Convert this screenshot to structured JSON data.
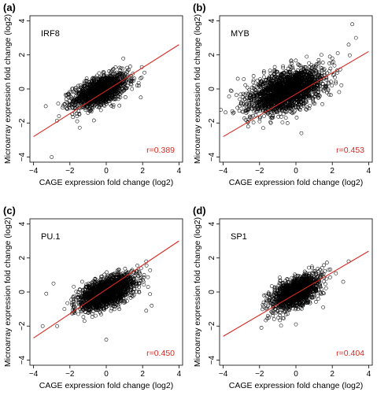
{
  "chart_data": [
    {
      "type": "scatter",
      "panel": "(a)",
      "title": "IRF8",
      "xlabel": "CAGE expression fold change (log2)",
      "ylabel": "Microarray expression fold change (log2)",
      "xlim": [
        -4.2,
        4.2
      ],
      "ylim": [
        -4.3,
        4.3
      ],
      "xticks": [
        -4,
        -2,
        0,
        2,
        4
      ],
      "yticks": [
        -4,
        -2,
        0,
        2,
        4
      ],
      "grid": false,
      "correlation_label": "r=0.389",
      "regression_line": {
        "x": [
          -4,
          4
        ],
        "y": [
          -2.8,
          2.6
        ]
      },
      "cloud": {
        "center": [
          -0.3,
          -0.1
        ],
        "sd": [
          0.75,
          0.5
        ],
        "rho": 0.55,
        "n": 1400
      },
      "outliers": {
        "x": [
          -3.0,
          -2.6,
          -2.2,
          1.7,
          1.9,
          -1.6,
          0.9,
          -2.4
        ],
        "y": [
          -4.0,
          -1.6,
          -0.6,
          0.2,
          -0.5,
          -1.9,
          1.2,
          -1.1
        ]
      },
      "colors": {
        "points": "#000000",
        "line": "#d62a20",
        "label": "#d62a20"
      }
    },
    {
      "type": "scatter",
      "panel": "(b)",
      "title": "MYB",
      "xlabel": "CAGE expression fold change (log2)",
      "ylabel": "Microarray expression fold change (log2)",
      "xlim": [
        -4.2,
        4.2
      ],
      "ylim": [
        -4.3,
        4.3
      ],
      "xticks": [
        -4,
        -2,
        0,
        2,
        4
      ],
      "yticks": [
        -4,
        -2,
        0,
        2,
        4
      ],
      "grid": false,
      "correlation_label": "r=0.453",
      "regression_line": {
        "x": [
          -4,
          4
        ],
        "y": [
          -2.8,
          2.2
        ]
      },
      "cloud": {
        "center": [
          -0.5,
          -0.1
        ],
        "sd": [
          1.0,
          0.65
        ],
        "rho": 0.5,
        "n": 2200
      },
      "outliers": {
        "x": [
          3.1,
          3.3,
          2.9,
          2.3,
          1.9,
          -3.2,
          -3.0,
          -2.6,
          1.4,
          2.0,
          -1.8,
          0.3
        ],
        "y": [
          3.8,
          3.0,
          2.6,
          2.1,
          1.2,
          0.6,
          -0.8,
          -1.8,
          2.0,
          1.8,
          -2.3,
          -2.6
        ]
      },
      "colors": {
        "points": "#000000",
        "line": "#d62a20",
        "label": "#d62a20"
      }
    },
    {
      "type": "scatter",
      "panel": "(c)",
      "title": "PU.1",
      "xlabel": "CAGE expression fold change (log2)",
      "ylabel": "Microarray expression fold change (log2)",
      "xlim": [
        -4.2,
        4.2
      ],
      "ylim": [
        -4.3,
        4.3
      ],
      "xticks": [
        -4,
        -2,
        0,
        2,
        4
      ],
      "yticks": [
        -4,
        -2,
        0,
        2,
        4
      ],
      "grid": false,
      "correlation_label": "r=0.450",
      "regression_line": {
        "x": [
          -4,
          4
        ],
        "y": [
          -2.7,
          3.0
        ]
      },
      "cloud": {
        "center": [
          0.0,
          0.0
        ],
        "sd": [
          0.75,
          0.5
        ],
        "rho": 0.55,
        "n": 1800
      },
      "outliers": {
        "x": [
          -3.5,
          -3.3,
          -2.9,
          -2.7,
          0.0,
          2.2,
          2.3,
          2.5,
          2.2,
          -2.3,
          1.8,
          -1.2
        ],
        "y": [
          -2.0,
          -0.1,
          0.5,
          -2.0,
          -2.8,
          1.8,
          0.3,
          -0.8,
          -1.1,
          -1.0,
          1.2,
          -1.7
        ]
      },
      "colors": {
        "points": "#000000",
        "line": "#d62a20",
        "label": "#d62a20"
      }
    },
    {
      "type": "scatter",
      "panel": "(d)",
      "title": "SP1",
      "xlabel": "CAGE expression fold change (log2)",
      "ylabel": "Microarray expression fold change (log2)",
      "xlim": [
        -4.2,
        4.2
      ],
      "ylim": [
        -4.3,
        4.3
      ],
      "xticks": [
        -4,
        -2,
        0,
        2,
        4
      ],
      "yticks": [
        -4,
        -2,
        0,
        2,
        4
      ],
      "grid": false,
      "correlation_label": "r=0.404",
      "regression_line": {
        "x": [
          -4,
          4
        ],
        "y": [
          -2.6,
          2.4
        ]
      },
      "cloud": {
        "center": [
          0.0,
          0.0
        ],
        "sd": [
          0.65,
          0.5
        ],
        "rho": 0.55,
        "n": 1500
      },
      "outliers": {
        "x": [
          -1.9,
          -1.6,
          2.9,
          2.6,
          2.2,
          1.8,
          1.5,
          -1.2,
          0.0
        ],
        "y": [
          -2.1,
          -1.0,
          1.8,
          0.6,
          1.1,
          1.3,
          -0.9,
          -1.6,
          -1.9
        ]
      },
      "colors": {
        "points": "#000000",
        "line": "#d62a20",
        "label": "#d62a20"
      }
    }
  ]
}
